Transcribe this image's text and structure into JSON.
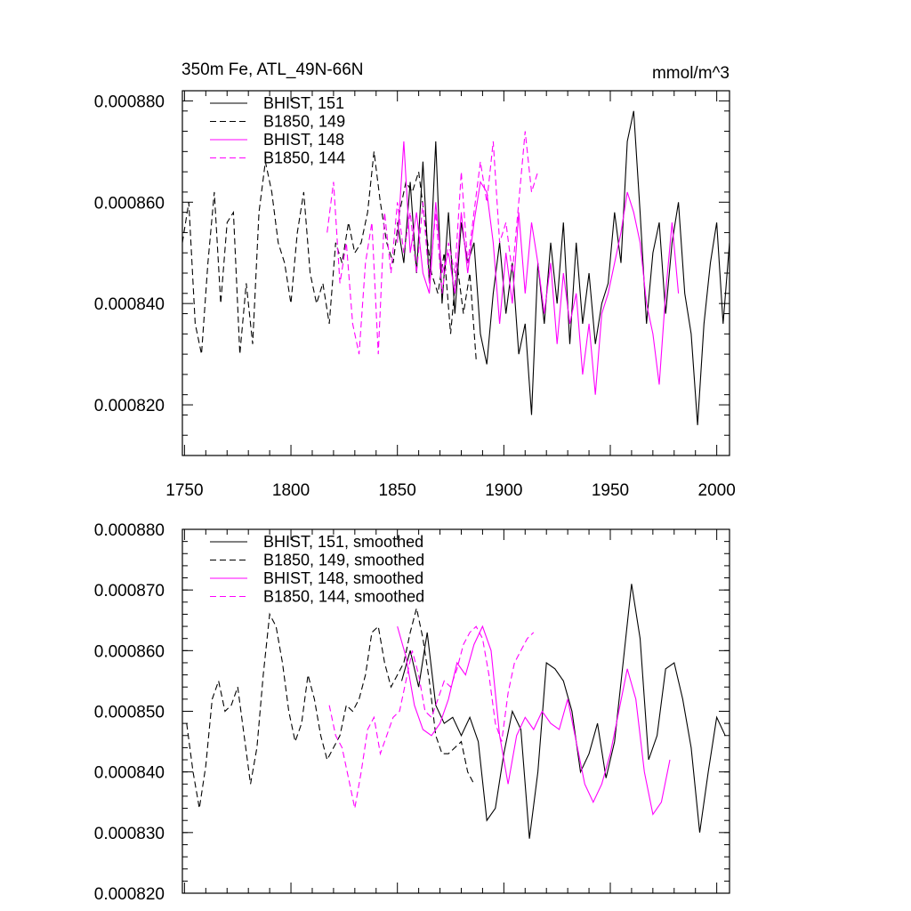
{
  "figure": {
    "title_left": "350m Fe, ATL_49N-66N",
    "title_right": "mmol/m^3"
  },
  "chart_data": [
    {
      "type": "line",
      "title": "350m Fe, ATL_49N-66N",
      "units": "mmol/m^3",
      "xlim": [
        1749,
        2006
      ],
      "ylim": [
        0.00081,
        0.000882
      ],
      "x_ticks": [
        1750,
        1800,
        1850,
        1900,
        1950,
        2000
      ],
      "x_tick_labels": [
        "1750",
        "1800",
        "1850",
        "1900",
        "1950",
        "2000"
      ],
      "y_ticks": [
        0.00082,
        0.00084,
        0.00086,
        0.00088
      ],
      "y_tick_labels": [
        "0.000820",
        "0.000840",
        "0.000860",
        "0.000880"
      ],
      "grid": false,
      "legend": "top-left",
      "series": [
        {
          "name": "BHIST, 151",
          "color": "#000000",
          "dash": "solid",
          "x": [
            1850,
            1853,
            1856,
            1859,
            1862,
            1865,
            1868,
            1871,
            1874,
            1877,
            1880,
            1883,
            1886,
            1889,
            1892,
            1895,
            1898,
            1901,
            1904,
            1907,
            1910,
            1913,
            1916,
            1919,
            1922,
            1925,
            1928,
            1931,
            1934,
            1937,
            1940,
            1943,
            1946,
            1949,
            1952,
            1955,
            1958,
            1961,
            1964,
            1967,
            1970,
            1973,
            1976,
            1979,
            1982,
            1985,
            1988,
            1991,
            1994,
            1997,
            2000,
            2003,
            2006
          ],
          "values": [
            0.000856,
            0.000848,
            0.000864,
            0.000846,
            0.000868,
            0.000844,
            0.000872,
            0.00084,
            0.000858,
            0.000838,
            0.000856,
            0.000848,
            0.000852,
            0.000834,
            0.000828,
            0.000842,
            0.000852,
            0.000838,
            0.000848,
            0.00083,
            0.000836,
            0.000818,
            0.000848,
            0.000836,
            0.000852,
            0.00084,
            0.000856,
            0.000832,
            0.000852,
            0.000836,
            0.000846,
            0.000832,
            0.00084,
            0.000844,
            0.000858,
            0.000848,
            0.000872,
            0.000878,
            0.000858,
            0.000836,
            0.00085,
            0.000856,
            0.000838,
            0.000852,
            0.00086,
            0.000842,
            0.000834,
            0.000816,
            0.000836,
            0.000848,
            0.000856,
            0.000836,
            0.000852
          ]
        },
        {
          "name": "B1850, 149",
          "color": "#000000",
          "dash": "dashed",
          "x": [
            1749,
            1752,
            1755,
            1758,
            1761,
            1764,
            1767,
            1770,
            1773,
            1776,
            1779,
            1782,
            1785,
            1788,
            1791,
            1794,
            1797,
            1800,
            1803,
            1806,
            1809,
            1812,
            1815,
            1818,
            1821,
            1824,
            1827,
            1830,
            1833,
            1836,
            1839,
            1842,
            1845,
            1848,
            1851,
            1854,
            1857,
            1860,
            1863,
            1866,
            1869,
            1872,
            1875,
            1878,
            1881,
            1884,
            1887
          ],
          "values": [
            0.000852,
            0.00086,
            0.000836,
            0.00083,
            0.000848,
            0.000862,
            0.00084,
            0.000856,
            0.000858,
            0.00083,
            0.000844,
            0.000832,
            0.000858,
            0.000868,
            0.000862,
            0.000852,
            0.000848,
            0.00084,
            0.000854,
            0.000862,
            0.000846,
            0.00084,
            0.000844,
            0.000836,
            0.000852,
            0.000848,
            0.000856,
            0.00085,
            0.000852,
            0.000858,
            0.00087,
            0.00086,
            0.000852,
            0.000848,
            0.000858,
            0.000864,
            0.000862,
            0.000866,
            0.000856,
            0.000846,
            0.000842,
            0.00085,
            0.000834,
            0.000848,
            0.000838,
            0.000846,
            0.000829
          ]
        },
        {
          "name": "BHIST, 148",
          "color": "#ff00ff",
          "dash": "solid",
          "x": [
            1850,
            1853,
            1856,
            1859,
            1862,
            1865,
            1868,
            1871,
            1874,
            1877,
            1880,
            1883,
            1886,
            1889,
            1892,
            1895,
            1898,
            1901,
            1904,
            1907,
            1910,
            1913,
            1916,
            1919,
            1922,
            1925,
            1928,
            1931,
            1934,
            1937,
            1940,
            1943,
            1946,
            1949,
            1952,
            1955,
            1958,
            1961,
            1964,
            1967,
            1970,
            1973,
            1976,
            1979,
            1982
          ],
          "values": [
            0.000852,
            0.000872,
            0.00085,
            0.000858,
            0.000846,
            0.000842,
            0.00086,
            0.000846,
            0.00085,
            0.000842,
            0.000858,
            0.000846,
            0.000856,
            0.000864,
            0.000862,
            0.000852,
            0.000836,
            0.00085,
            0.00084,
            0.000858,
            0.000842,
            0.000856,
            0.000848,
            0.000838,
            0.000848,
            0.000832,
            0.000846,
            0.000836,
            0.000842,
            0.000826,
            0.000836,
            0.000822,
            0.000838,
            0.000842,
            0.000848,
            0.000854,
            0.000862,
            0.000858,
            0.000852,
            0.00084,
            0.000834,
            0.000824,
            0.000842,
            0.000856,
            0.000842
          ]
        },
        {
          "name": "B1850, 144",
          "color": "#ff00ff",
          "dash": "dashed",
          "x": [
            1817,
            1820,
            1823,
            1826,
            1829,
            1832,
            1835,
            1838,
            1841,
            1844,
            1847,
            1850,
            1853,
            1856,
            1859,
            1862,
            1865,
            1868,
            1871,
            1874,
            1877,
            1880,
            1883,
            1886,
            1889,
            1892,
            1895,
            1898,
            1901,
            1904,
            1907,
            1910,
            1913,
            1916
          ],
          "values": [
            0.000854,
            0.000864,
            0.000844,
            0.000852,
            0.000836,
            0.00083,
            0.000848,
            0.000856,
            0.00083,
            0.000858,
            0.000846,
            0.00086,
            0.00085,
            0.000858,
            0.000846,
            0.00086,
            0.000844,
            0.000858,
            0.000842,
            0.000852,
            0.000846,
            0.000866,
            0.000848,
            0.000858,
            0.000868,
            0.00086,
            0.000872,
            0.000852,
            0.000856,
            0.000846,
            0.00086,
            0.000874,
            0.000862,
            0.000866
          ]
        }
      ]
    },
    {
      "type": "line",
      "xlim": [
        1749,
        2006
      ],
      "ylim": [
        0.00082,
        0.00088
      ],
      "x_ticks": [
        1750,
        1800,
        1850,
        1900,
        1950,
        2000
      ],
      "y_ticks": [
        0.00082,
        0.00083,
        0.00084,
        0.00085,
        0.00086,
        0.00087,
        0.00088
      ],
      "y_tick_labels": [
        "0.000820",
        "0.000830",
        "0.000840",
        "0.000850",
        "0.000860",
        "0.000870",
        "0.000880"
      ],
      "grid": false,
      "legend": "top-left",
      "series": [
        {
          "name": "BHIST, 151, smoothed",
          "color": "#000000",
          "dash": "solid",
          "x": [
            1852,
            1856,
            1860,
            1864,
            1868,
            1872,
            1876,
            1880,
            1884,
            1888,
            1892,
            1896,
            1900,
            1904,
            1908,
            1912,
            1916,
            1920,
            1924,
            1928,
            1932,
            1936,
            1940,
            1944,
            1948,
            1952,
            1956,
            1960,
            1964,
            1968,
            1972,
            1976,
            1980,
            1984,
            1988,
            1992,
            1996,
            2000,
            2004
          ],
          "values": [
            0.000855,
            0.00086,
            0.000854,
            0.000863,
            0.000851,
            0.000848,
            0.000849,
            0.000846,
            0.000849,
            0.000845,
            0.000832,
            0.000834,
            0.000843,
            0.00085,
            0.000847,
            0.000829,
            0.00084,
            0.000858,
            0.000857,
            0.000855,
            0.00085,
            0.00084,
            0.000843,
            0.000848,
            0.000839,
            0.000845,
            0.000858,
            0.000871,
            0.000862,
            0.000842,
            0.000846,
            0.000857,
            0.000858,
            0.000852,
            0.000844,
            0.00083,
            0.00084,
            0.000849,
            0.000846
          ]
        },
        {
          "name": "B1850, 149, smoothed",
          "color": "#000000",
          "dash": "dashed",
          "x": [
            1751,
            1754,
            1757,
            1760,
            1763,
            1766,
            1769,
            1772,
            1775,
            1778,
            1781,
            1784,
            1787,
            1790,
            1793,
            1796,
            1799,
            1802,
            1805,
            1808,
            1811,
            1814,
            1817,
            1820,
            1823,
            1826,
            1829,
            1832,
            1835,
            1838,
            1841,
            1844,
            1847,
            1850,
            1853,
            1856,
            1859,
            1862,
            1865,
            1868,
            1871,
            1874,
            1877,
            1880,
            1883,
            1886
          ],
          "values": [
            0.000848,
            0.00084,
            0.000834,
            0.000841,
            0.000852,
            0.000855,
            0.00085,
            0.000851,
            0.000854,
            0.000846,
            0.000838,
            0.000844,
            0.000856,
            0.000866,
            0.000864,
            0.000858,
            0.00085,
            0.000845,
            0.000848,
            0.000856,
            0.000852,
            0.000846,
            0.000842,
            0.000844,
            0.000846,
            0.000851,
            0.00085,
            0.000852,
            0.000856,
            0.000863,
            0.000864,
            0.000858,
            0.000854,
            0.000856,
            0.000858,
            0.000863,
            0.000867,
            0.000862,
            0.000855,
            0.000846,
            0.000843,
            0.000843,
            0.000844,
            0.000845,
            0.00084,
            0.000838
          ]
        },
        {
          "name": "BHIST, 148, smoothed",
          "color": "#ff00ff",
          "dash": "solid",
          "x": [
            1850,
            1854,
            1858,
            1862,
            1866,
            1870,
            1874,
            1878,
            1882,
            1886,
            1890,
            1894,
            1898,
            1902,
            1906,
            1910,
            1914,
            1918,
            1922,
            1926,
            1930,
            1934,
            1938,
            1942,
            1946,
            1950,
            1954,
            1958,
            1962,
            1966,
            1970,
            1974,
            1978
          ],
          "values": [
            0.000864,
            0.000859,
            0.000851,
            0.000847,
            0.000846,
            0.000848,
            0.000852,
            0.000858,
            0.000856,
            0.000861,
            0.000864,
            0.00086,
            0.000846,
            0.000838,
            0.000846,
            0.000849,
            0.000847,
            0.00085,
            0.000848,
            0.000847,
            0.000852,
            0.000845,
            0.000838,
            0.000835,
            0.000838,
            0.000843,
            0.00085,
            0.000857,
            0.000852,
            0.00084,
            0.000833,
            0.000835,
            0.000842
          ]
        },
        {
          "name": "B1850, 144, smoothed",
          "color": "#ff00ff",
          "dash": "dashed",
          "x": [
            1818,
            1821,
            1824,
            1827,
            1830,
            1833,
            1836,
            1839,
            1842,
            1845,
            1848,
            1851,
            1854,
            1857,
            1860,
            1863,
            1866,
            1869,
            1872,
            1875,
            1878,
            1881,
            1884,
            1887,
            1890,
            1893,
            1896,
            1899,
            1902,
            1905,
            1908,
            1911,
            1914
          ],
          "values": [
            0.000851,
            0.000846,
            0.000844,
            0.000839,
            0.000834,
            0.00084,
            0.000847,
            0.000849,
            0.000843,
            0.000846,
            0.000849,
            0.00085,
            0.000855,
            0.00086,
            0.000856,
            0.00085,
            0.000849,
            0.000852,
            0.000855,
            0.000854,
            0.000857,
            0.000861,
            0.000863,
            0.000864,
            0.000862,
            0.000856,
            0.000848,
            0.000845,
            0.000853,
            0.000858,
            0.00086,
            0.000862,
            0.000863
          ]
        }
      ]
    }
  ]
}
